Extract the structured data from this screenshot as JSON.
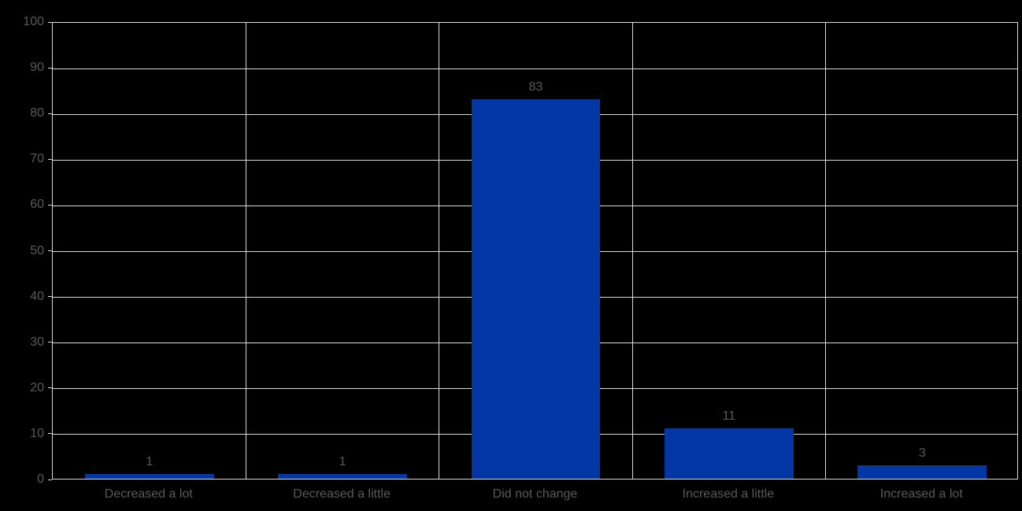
{
  "chart_data": {
    "type": "bar",
    "title": "",
    "xlabel": "",
    "ylabel": "",
    "categories": [
      "Decreased a lot",
      "Decreased a little",
      "Did not change",
      "Increased a little",
      "Increased a lot"
    ],
    "values": [
      1,
      1,
      83,
      11,
      3
    ],
    "value_labels": [
      "1",
      "1",
      "83",
      "11",
      "3"
    ],
    "ylim": [
      0,
      100
    ],
    "ytick_step": 10,
    "ytick_labels": [
      "0",
      "10",
      "20",
      "30",
      "40",
      "50",
      "60",
      "70",
      "80",
      "90",
      "100"
    ],
    "grid": {
      "horizontal": true,
      "vertical": true
    },
    "legend": null,
    "layout_hints": {
      "bar_width_fraction_of_band": 0.668,
      "background": "black",
      "plot_border": true
    },
    "colors": {
      "background": "#000000",
      "bar": "#0437A6",
      "gridline": "#D9D9D9",
      "text": "#595959"
    }
  }
}
